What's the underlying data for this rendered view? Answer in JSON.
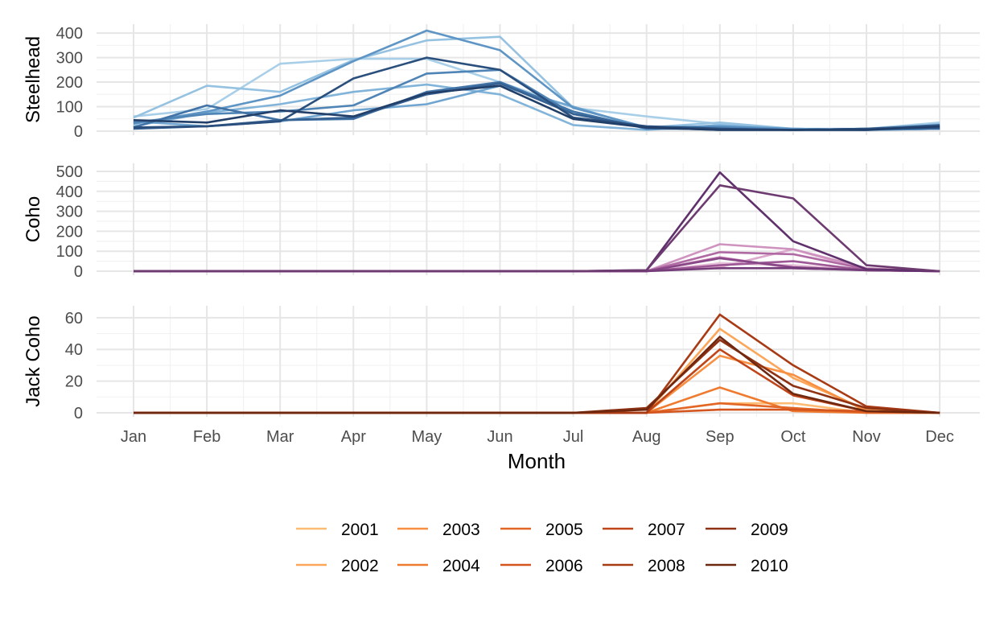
{
  "chart_data": {
    "type": "line",
    "xlabel": "Month",
    "categories": [
      "Jan",
      "Feb",
      "Mar",
      "Apr",
      "May",
      "Jun",
      "Jul",
      "Aug",
      "Sep",
      "Oct",
      "Nov",
      "Dec"
    ],
    "grid": true,
    "legend": {
      "placement": "bottom",
      "entries": [
        {
          "label": "2001",
          "color": "#fdbb73"
        },
        {
          "label": "2002",
          "color": "#fca65a"
        },
        {
          "label": "2003",
          "color": "#f78f42"
        },
        {
          "label": "2004",
          "color": "#ee7b2f"
        },
        {
          "label": "2005",
          "color": "#e26726"
        },
        {
          "label": "2006",
          "color": "#d4551d"
        },
        {
          "label": "2007",
          "color": "#c04518"
        },
        {
          "label": "2008",
          "color": "#a83a14"
        },
        {
          "label": "2009",
          "color": "#8f3213"
        },
        {
          "label": "2010",
          "color": "#6f2810"
        }
      ]
    },
    "panels": [
      {
        "name": "Steelhead",
        "ylim": [
          0,
          420
        ],
        "yticks": [
          0,
          100,
          200,
          300,
          400
        ],
        "series": [
          {
            "color": "#a9cfe8",
            "values": [
              60,
              90,
              275,
              295,
              295,
              200,
              95,
              60,
              30,
              10,
              10,
              35
            ]
          },
          {
            "color": "#96c2e2",
            "values": [
              55,
              185,
              160,
              290,
              370,
              385,
              95,
              15,
              35,
              10,
              5,
              30
            ]
          },
          {
            "color": "#82b4da",
            "values": [
              20,
              75,
              110,
              160,
              190,
              150,
              25,
              5,
              25,
              5,
              5,
              15
            ]
          },
          {
            "color": "#6fa5d0",
            "values": [
              40,
              20,
              40,
              85,
              110,
              185,
              100,
              10,
              10,
              10,
              5,
              20
            ]
          },
          {
            "color": "#5e95c4",
            "values": [
              30,
              80,
              145,
              285,
              410,
              330,
              95,
              15,
              20,
              10,
              5,
              10
            ]
          },
          {
            "color": "#4f84b6",
            "values": [
              35,
              70,
              80,
              105,
              235,
              250,
              70,
              15,
              15,
              5,
              5,
              10
            ]
          },
          {
            "color": "#4273a6",
            "values": [
              15,
              105,
              45,
              50,
              160,
              200,
              80,
              10,
              10,
              5,
              10,
              10
            ]
          },
          {
            "color": "#366193",
            "values": [
              10,
              20,
              45,
              55,
              150,
              195,
              70,
              15,
              5,
              5,
              10,
              25
            ]
          },
          {
            "color": "#2b4f7d",
            "values": [
              15,
              20,
              40,
              215,
              300,
              250,
              55,
              20,
              10,
              5,
              10,
              15
            ]
          },
          {
            "color": "#213f68",
            "values": [
              45,
              35,
              85,
              60,
              155,
              185,
              50,
              15,
              5,
              5,
              5,
              20
            ]
          }
        ]
      },
      {
        "name": "Coho",
        "ylim": [
          0,
          520
        ],
        "yticks": [
          0,
          100,
          200,
          300,
          400,
          500
        ],
        "series": [
          {
            "color": "#e6bfd9",
            "values": [
              0,
              0,
              0,
              0,
              0,
              0,
              0,
              0,
              40,
              30,
              5,
              0
            ]
          },
          {
            "color": "#dba9cc",
            "values": [
              0,
              0,
              0,
              0,
              0,
              0,
              0,
              0,
              20,
              110,
              5,
              0
            ]
          },
          {
            "color": "#cf93bf",
            "values": [
              0,
              0,
              0,
              0,
              0,
              0,
              0,
              0,
              135,
              110,
              15,
              0
            ]
          },
          {
            "color": "#c07eb1",
            "values": [
              0,
              0,
              0,
              0,
              0,
              0,
              0,
              0,
              70,
              15,
              5,
              0
            ]
          },
          {
            "color": "#b06aa3",
            "values": [
              0,
              0,
              0,
              0,
              0,
              0,
              0,
              0,
              95,
              85,
              10,
              0
            ]
          },
          {
            "color": "#9d5895",
            "values": [
              0,
              0,
              0,
              0,
              0,
              0,
              0,
              0,
              30,
              50,
              5,
              0
            ]
          },
          {
            "color": "#884887",
            "values": [
              0,
              0,
              0,
              0,
              0,
              0,
              0,
              0,
              65,
              20,
              5,
              0
            ]
          },
          {
            "color": "#743c79",
            "values": [
              0,
              0,
              0,
              0,
              0,
              0,
              0,
              0,
              15,
              15,
              5,
              0
            ]
          },
          {
            "color": "#5f306b",
            "values": [
              0,
              0,
              0,
              0,
              0,
              0,
              0,
              5,
              495,
              150,
              10,
              0
            ]
          },
          {
            "color": "#6d3b70",
            "values": [
              0,
              0,
              0,
              0,
              0,
              0,
              0,
              5,
              430,
              365,
              30,
              0
            ]
          }
        ]
      },
      {
        "name": "Jack Coho",
        "ylim": [
          0,
          65
        ],
        "yticks": [
          0,
          20,
          40,
          60
        ],
        "series": [
          {
            "color": "#fdbb73",
            "values": [
              0,
              0,
              0,
              0,
              0,
              0,
              0,
              0,
              6,
              6,
              0,
              0
            ]
          },
          {
            "color": "#fca65a",
            "values": [
              0,
              0,
              0,
              0,
              0,
              0,
              0,
              0,
              53,
              22,
              2,
              0
            ]
          },
          {
            "color": "#f78f42",
            "values": [
              0,
              0,
              0,
              0,
              0,
              0,
              0,
              0,
              36,
              24,
              1,
              0
            ]
          },
          {
            "color": "#ee7b2f",
            "values": [
              0,
              0,
              0,
              0,
              0,
              0,
              0,
              0,
              16,
              1,
              0,
              0
            ]
          },
          {
            "color": "#e26726",
            "values": [
              0,
              0,
              0,
              0,
              0,
              0,
              0,
              0,
              6,
              3,
              0,
              0
            ]
          },
          {
            "color": "#d4551d",
            "values": [
              0,
              0,
              0,
              0,
              0,
              0,
              0,
              0,
              2,
              2,
              1,
              0
            ]
          },
          {
            "color": "#c04518",
            "values": [
              0,
              0,
              0,
              0,
              0,
              0,
              0,
              0,
              40,
              11,
              1,
              0
            ]
          },
          {
            "color": "#a83a14",
            "values": [
              0,
              0,
              0,
              0,
              0,
              0,
              0,
              0,
              62,
              30,
              4,
              0
            ]
          },
          {
            "color": "#8f3213",
            "values": [
              0,
              0,
              0,
              0,
              0,
              0,
              0,
              3,
              46,
              17,
              3,
              0
            ]
          },
          {
            "color": "#6f2810",
            "values": [
              0,
              0,
              0,
              0,
              0,
              0,
              0,
              2,
              48,
              12,
              1,
              0
            ]
          }
        ]
      }
    ]
  }
}
